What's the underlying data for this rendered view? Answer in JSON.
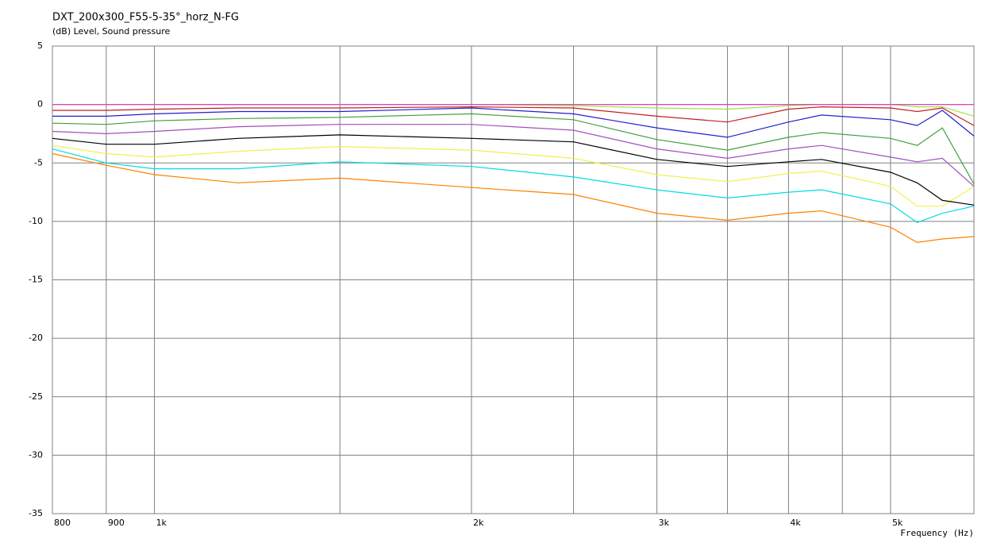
{
  "chart_data": {
    "type": "line",
    "title": "DXT_200x300_F55-5-35°_horz_N-FG",
    "subtitle": "(dB) Level, Sound pressure",
    "x_label": "Frequency (Hz)",
    "x": [
      800,
      900,
      1000,
      1200,
      1500,
      2000,
      2500,
      3000,
      3500,
      4000,
      4300,
      5000,
      5300,
      5600,
      6000
    ],
    "xscale": "log",
    "xlim": [
      800,
      6000
    ],
    "xticks": [
      800,
      900,
      {
        "value": 1000,
        "label": "1k"
      },
      {
        "value": 2000,
        "label": "2k"
      },
      {
        "value": 3000,
        "label": "3k"
      },
      {
        "value": 4000,
        "label": "4k"
      },
      {
        "value": 5000,
        "label": "5k"
      }
    ],
    "xminor": [
      1500,
      2500,
      3500,
      4500
    ],
    "ylim": [
      -35,
      5
    ],
    "yticks": [
      5,
      0,
      -5,
      -10,
      -15,
      -20,
      -25,
      -30,
      -35
    ],
    "grid": true,
    "series": [
      {
        "color": "#ff8000",
        "values": [
          -4.2,
          -5.2,
          -6.0,
          -6.7,
          -6.3,
          -7.1,
          -7.7,
          -9.3,
          -9.9,
          -9.3,
          -9.1,
          -10.5,
          -11.8,
          -11.5,
          -11.3
        ]
      },
      {
        "color": "#00dce0",
        "values": [
          -3.8,
          -5.0,
          -5.5,
          -5.5,
          -4.9,
          -5.3,
          -6.2,
          -7.3,
          -8.0,
          -7.5,
          -7.3,
          -8.5,
          -10.1,
          -9.3,
          -8.7
        ]
      },
      {
        "color": "#f0f050",
        "values": [
          -3.5,
          -4.2,
          -4.5,
          -4.0,
          -3.6,
          -3.9,
          -4.6,
          -6.0,
          -6.6,
          -5.9,
          -5.7,
          -7.0,
          -8.7,
          -8.7,
          -7.0
        ]
      },
      {
        "color": "#000000",
        "values": [
          -2.9,
          -3.4,
          -3.4,
          -2.9,
          -2.6,
          -2.9,
          -3.2,
          -4.7,
          -5.3,
          -4.9,
          -4.7,
          -5.8,
          -6.7,
          -8.2,
          -8.6
        ]
      },
      {
        "color": "#a050c0",
        "values": [
          -2.3,
          -2.5,
          -2.3,
          -1.9,
          -1.7,
          -1.7,
          -2.2,
          -3.8,
          -4.6,
          -3.8,
          -3.5,
          -4.5,
          -4.9,
          -4.6,
          -7.0
        ]
      },
      {
        "color": "#40a040",
        "values": [
          -1.6,
          -1.7,
          -1.4,
          -1.2,
          -1.1,
          -0.8,
          -1.3,
          -3.0,
          -3.9,
          -2.8,
          -2.4,
          -2.9,
          -3.5,
          -2.0,
          -6.8
        ]
      },
      {
        "color": "#2020d0",
        "values": [
          -1.0,
          -1.0,
          -0.8,
          -0.6,
          -0.6,
          -0.3,
          -0.8,
          -2.0,
          -2.8,
          -1.5,
          -0.9,
          -1.3,
          -1.8,
          -0.5,
          -2.7
        ]
      },
      {
        "color": "#c02020",
        "values": [
          -0.5,
          -0.5,
          -0.4,
          -0.3,
          -0.3,
          -0.2,
          -0.3,
          -1.0,
          -1.5,
          -0.4,
          -0.2,
          -0.3,
          -0.6,
          -0.3,
          -1.8
        ]
      },
      {
        "color": "#a0e040",
        "values": [
          0,
          0,
          0,
          0,
          0,
          0,
          -0.1,
          -0.3,
          -0.4,
          -0.1,
          0,
          0,
          -0.2,
          -0.2,
          -1.0
        ]
      },
      {
        "color": "#e040c0",
        "values": [
          0,
          0,
          0,
          0,
          0,
          0,
          0,
          0,
          0,
          0,
          0,
          0,
          0,
          0,
          0
        ]
      }
    ]
  }
}
